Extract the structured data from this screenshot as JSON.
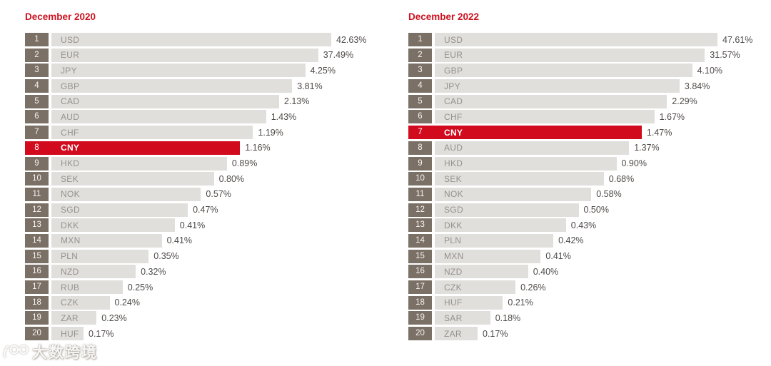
{
  "colors": {
    "accent_red": "#d20a1e",
    "title_red": "#cc121f",
    "rank_box_taupe": "#7b7066",
    "bar_gray": "#e1dfdc",
    "label_gray": "#95918e",
    "value_gray": "#4f4b49",
    "background": "#ffffff"
  },
  "watermark": {
    "icon": "100-glasses-logo",
    "text": "大数跨境"
  },
  "chart_data": [
    {
      "type": "bar",
      "title": "December 2020",
      "orientation": "horizontal",
      "value_suffix": "%",
      "highlight_category": "CNY",
      "legend": "none",
      "grid": false,
      "categories": [
        "USD",
        "EUR",
        "JPY",
        "GBP",
        "CAD",
        "AUD",
        "CHF",
        "CNY",
        "HKD",
        "SEK",
        "NOK",
        "SGD",
        "DKK",
        "MXN",
        "PLN",
        "NZD",
        "RUB",
        "CZK",
        "ZAR",
        "HUF"
      ],
      "ranks": [
        1,
        2,
        3,
        4,
        5,
        6,
        7,
        8,
        9,
        10,
        11,
        12,
        13,
        14,
        15,
        16,
        17,
        18,
        19,
        20
      ],
      "values": [
        42.63,
        37.49,
        4.25,
        3.81,
        2.13,
        1.43,
        1.19,
        1.16,
        0.89,
        0.8,
        0.57,
        0.47,
        0.41,
        0.41,
        0.35,
        0.32,
        0.25,
        0.24,
        0.23,
        0.17
      ],
      "value_labels": [
        "42.63%",
        "37.49%",
        "4.25%",
        "3.81%",
        "2.13%",
        "1.43%",
        "1.19%",
        "1.16%",
        "0.89%",
        "0.80%",
        "0.57%",
        "0.47%",
        "0.41%",
        "0.41%",
        "0.35%",
        "0.32%",
        "0.25%",
        "0.24%",
        "0.23%",
        "0.17%"
      ]
    },
    {
      "type": "bar",
      "title": "December 2022",
      "orientation": "horizontal",
      "value_suffix": "%",
      "highlight_category": "CNY",
      "legend": "none",
      "grid": false,
      "categories": [
        "USD",
        "EUR",
        "GBP",
        "JPY",
        "CAD",
        "CHF",
        "CNY",
        "AUD",
        "HKD",
        "SEK",
        "NOK",
        "SGD",
        "DKK",
        "PLN",
        "MXN",
        "NZD",
        "CZK",
        "HUF",
        "SAR",
        "ZAR"
      ],
      "ranks": [
        1,
        2,
        3,
        4,
        5,
        6,
        7,
        8,
        9,
        10,
        11,
        12,
        13,
        14,
        15,
        16,
        17,
        18,
        19,
        20
      ],
      "values": [
        47.61,
        31.57,
        4.1,
        3.84,
        2.29,
        1.67,
        1.47,
        1.37,
        0.9,
        0.68,
        0.58,
        0.5,
        0.43,
        0.42,
        0.41,
        0.4,
        0.26,
        0.21,
        0.18,
        0.17
      ],
      "value_labels": [
        "47.61%",
        "31.57%",
        "4.10%",
        "3.84%",
        "2.29%",
        "1.67%",
        "1.47%",
        "1.37%",
        "0.90%",
        "0.68%",
        "0.58%",
        "0.50%",
        "0.43%",
        "0.42%",
        "0.41%",
        "0.40%",
        "0.26%",
        "0.21%",
        "0.18%",
        "0.17%"
      ]
    }
  ]
}
